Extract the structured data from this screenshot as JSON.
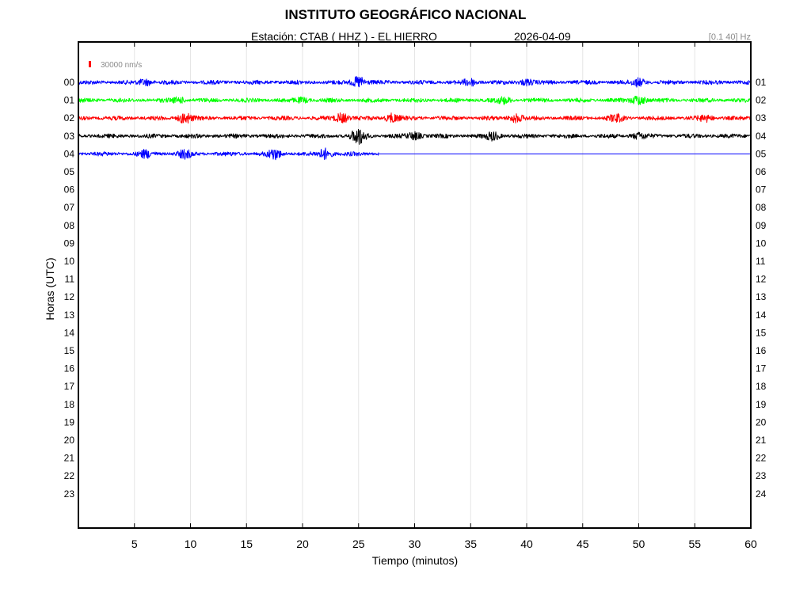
{
  "header": {
    "title": "INSTITUTO GEOGRÁFICO NACIONAL",
    "station": "Estación:  CTAB ( HHZ ) - EL HIERRO",
    "date": "2026-04-09",
    "filter": "[0.1 40] Hz"
  },
  "chart_data": {
    "type": "line",
    "title": "INSTITUTO GEOGRÁFICO NACIONAL",
    "xlabel": "Tiempo (minutos)",
    "ylabel": "Horas (UTC)",
    "xlim": [
      0,
      60
    ],
    "x_ticks": [
      5,
      10,
      15,
      20,
      25,
      30,
      35,
      40,
      45,
      50,
      55,
      60
    ],
    "left_hour_labels": [
      "00",
      "01",
      "02",
      "03",
      "04",
      "05",
      "06",
      "07",
      "08",
      "09",
      "10",
      "11",
      "12",
      "13",
      "14",
      "15",
      "16",
      "17",
      "18",
      "19",
      "20",
      "21",
      "22",
      "23"
    ],
    "right_hour_labels": [
      "01",
      "02",
      "03",
      "04",
      "05",
      "06",
      "07",
      "08",
      "09",
      "10",
      "11",
      "12",
      "13",
      "14",
      "15",
      "16",
      "17",
      "18",
      "19",
      "20",
      "21",
      "22",
      "23",
      "24"
    ],
    "scale_label": "30000 nm/s",
    "scale_color": "#ff0000",
    "grid": "vertical",
    "traces": [
      {
        "hour": "00",
        "color": "#0000ff",
        "end_minute": 60,
        "bursts": [
          [
            6,
            0.8
          ],
          [
            25,
            1.6
          ],
          [
            35,
            0.9
          ],
          [
            40,
            0.8
          ],
          [
            50,
            1.0
          ]
        ]
      },
      {
        "hour": "01",
        "color": "#00ff00",
        "end_minute": 60,
        "bursts": [
          [
            9,
            0.7
          ],
          [
            20,
            0.6
          ],
          [
            38,
            0.8
          ],
          [
            50,
            1.3
          ]
        ]
      },
      {
        "hour": "02",
        "color": "#ff0000",
        "end_minute": 60,
        "bursts": [
          [
            9.5,
            1.5
          ],
          [
            23.5,
            1.3
          ],
          [
            28,
            1.2
          ],
          [
            39,
            1.1
          ],
          [
            48,
            0.9
          ],
          [
            56,
            0.8
          ]
        ]
      },
      {
        "hour": "03",
        "color": "#000000",
        "end_minute": 60,
        "bursts": [
          [
            25,
            2.2
          ],
          [
            30,
            1.0
          ],
          [
            37,
            1.1
          ],
          [
            50,
            0.8
          ]
        ]
      },
      {
        "hour": "04",
        "color": "#0000ff",
        "end_minute": 26.8,
        "continued_to_end": true,
        "bursts": [
          [
            6,
            0.9
          ],
          [
            9.5,
            1.0
          ],
          [
            17.5,
            1.3
          ],
          [
            22,
            1.4
          ]
        ]
      }
    ]
  }
}
